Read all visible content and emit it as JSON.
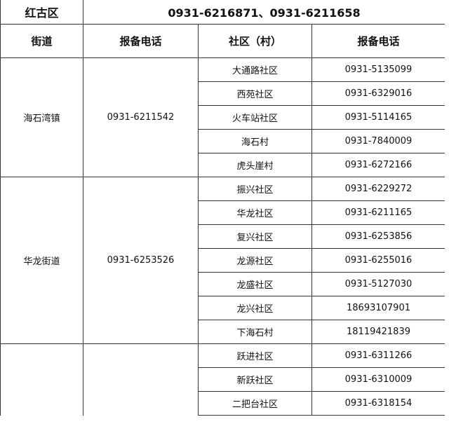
{
  "district": {
    "name": "红古区",
    "phones": "0931-6216871、0931-6211658"
  },
  "headers": [
    "街道",
    "报备电话",
    "社区（村）",
    "报备电话"
  ],
  "groups": [
    {
      "street": "海石湾镇",
      "phone": "0931-6211542",
      "communities": [
        {
          "name": "大通路社区",
          "phone": "0931-5135099"
        },
        {
          "name": "西苑社区",
          "phone": "0931-6329016"
        },
        {
          "name": "火车站社区",
          "phone": "0931-5114165"
        },
        {
          "name": "海石村",
          "phone": "0931-7840009"
        },
        {
          "name": "虎头崖村",
          "phone": "0931-6272166"
        }
      ]
    },
    {
      "street": "华龙街道",
      "phone": "0931-6253526",
      "communities": [
        {
          "name": "振兴社区",
          "phone": "0931-6229272"
        },
        {
          "name": "华龙社区",
          "phone": "0931-6211165"
        },
        {
          "name": "复兴社区",
          "phone": "0931-6253856"
        },
        {
          "name": "龙源社区",
          "phone": "0931-6255016"
        },
        {
          "name": "龙盛社区",
          "phone": "0931-5127030"
        },
        {
          "name": "龙兴社区",
          "phone": "18693107901"
        },
        {
          "name": "下海石村",
          "phone": "18119421839"
        }
      ]
    },
    {
      "street": "",
      "phone": "",
      "communities": [
        {
          "name": "跃进社区",
          "phone": "0931-6311266"
        },
        {
          "name": "新跃社区",
          "phone": "0931-6310009"
        },
        {
          "name": "二把台社区",
          "phone": "0931-6318154"
        }
      ]
    }
  ]
}
